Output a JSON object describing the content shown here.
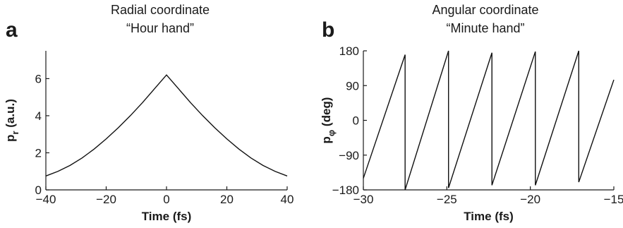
{
  "chart_data": [
    {
      "type": "line",
      "panel": "a",
      "title": "Radial coordinate",
      "subtitle": "“Hour hand”",
      "xlabel": "Time (fs)",
      "ylabel_main": "p",
      "ylabel_sub": "r",
      "ylabel_unit": " (a.u.)",
      "xlim": [
        -40,
        40
      ],
      "ylim": [
        0,
        7.5
      ],
      "xticks": [
        -40,
        -20,
        0,
        20,
        40
      ],
      "xtick_labels": [
        "−40",
        "−20",
        "0",
        "20",
        "40"
      ],
      "yticks": [
        0,
        2,
        4,
        6
      ],
      "ytick_labels": [
        "0",
        "2",
        "4",
        "6"
      ],
      "series": [
        {
          "x": [
            -40,
            -36,
            -32,
            -28,
            -24,
            -20,
            -16,
            -12,
            -8,
            -4,
            0,
            4,
            8,
            12,
            16,
            20,
            24,
            28,
            32,
            36,
            40
          ],
          "y": [
            0.75,
            1.0,
            1.32,
            1.72,
            2.2,
            2.75,
            3.35,
            4.0,
            4.7,
            5.45,
            6.2,
            5.45,
            4.7,
            4.0,
            3.35,
            2.75,
            2.2,
            1.72,
            1.32,
            1.0,
            0.75
          ]
        }
      ]
    },
    {
      "type": "line",
      "panel": "b",
      "title": "Angular coordinate",
      "subtitle": "“Minute hand”",
      "xlabel": "Time (fs)",
      "ylabel_main": "p",
      "ylabel_sub": "φ",
      "ylabel_unit": " (deg)",
      "xlim": [
        -30,
        -15
      ],
      "ylim": [
        -180,
        180
      ],
      "xticks": [
        -30,
        -25,
        -20,
        -15
      ],
      "xtick_labels": [
        "−30",
        "−25",
        "−20",
        "−15"
      ],
      "yticks": [
        -180,
        -90,
        0,
        90,
        180
      ],
      "ytick_labels": [
        "−180",
        "−90",
        "0",
        "90",
        "180"
      ],
      "series": [
        {
          "x": [
            -30.0,
            -27.5,
            -27.5,
            -24.9,
            -24.9,
            -22.3,
            -22.3,
            -19.7,
            -19.7,
            -17.1,
            -17.1,
            -15.0
          ],
          "y": [
            -150,
            170,
            -180,
            180,
            -175,
            175,
            -168,
            178,
            -168,
            180,
            -160,
            105
          ]
        }
      ]
    }
  ]
}
